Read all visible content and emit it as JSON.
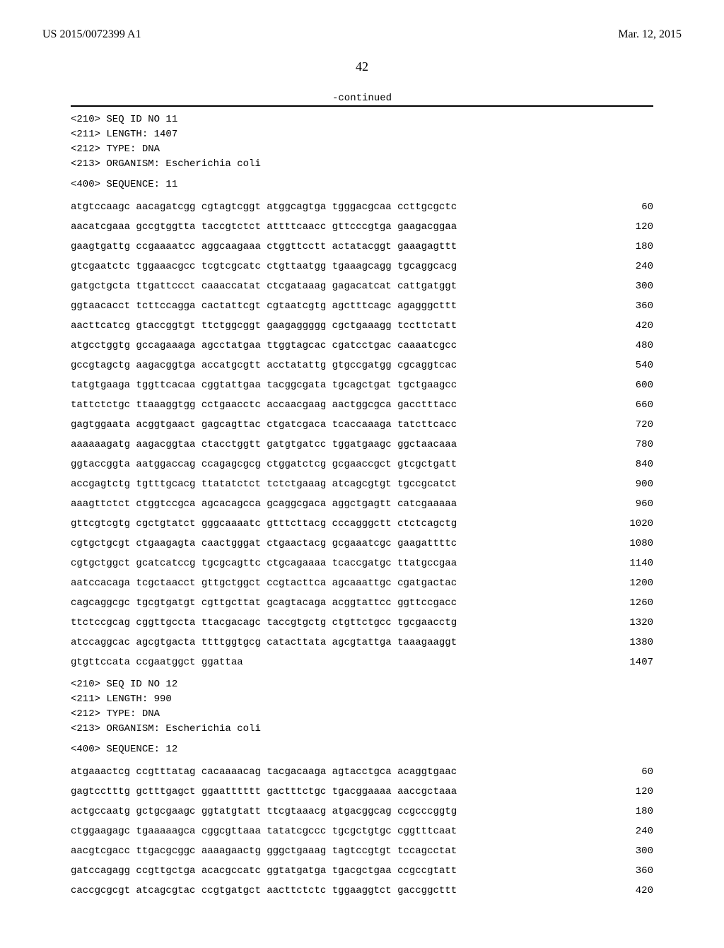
{
  "header": {
    "pub_number": "US 2015/0072399 A1",
    "pub_date": "Mar. 12, 2015"
  },
  "page_number": "42",
  "continued_label": "-continued",
  "seq11": {
    "meta": [
      "<210> SEQ ID NO 11",
      "<211> LENGTH: 1407",
      "<212> TYPE: DNA",
      "<213> ORGANISM: Escherichia coli"
    ],
    "title": "<400> SEQUENCE: 11",
    "rows": [
      {
        "g": "atgtccaagc aacagatcgg cgtagtcggt atggcagtga tgggacgcaa ccttgcgctc",
        "p": "60"
      },
      {
        "g": "aacatcgaaa gccgtggtta taccgtctct attttcaacc gttcccgtga gaagacggaa",
        "p": "120"
      },
      {
        "g": "gaagtgattg ccgaaaatcc aggcaagaaa ctggttcctt actatacggt gaaagagttt",
        "p": "180"
      },
      {
        "g": "gtcgaatctc tggaaacgcc tcgtcgcatc ctgttaatgg tgaaagcagg tgcaggcacg",
        "p": "240"
      },
      {
        "g": "gatgctgcta ttgattccct caaaccatat ctcgataaag gagacatcat cattgatggt",
        "p": "300"
      },
      {
        "g": "ggtaacacct tcttccagga cactattcgt cgtaatcgtg agctttcagc agagggcttt",
        "p": "360"
      },
      {
        "g": "aacttcatcg gtaccggtgt ttctggcggt gaagaggggg cgctgaaagg tccttctatt",
        "p": "420"
      },
      {
        "g": "atgcctggtg gccagaaaga agcctatgaa ttggtagcac cgatcctgac caaaatcgcc",
        "p": "480"
      },
      {
        "g": "gccgtagctg aagacggtga accatgcgtt acctatattg gtgccgatgg cgcaggtcac",
        "p": "540"
      },
      {
        "g": "tatgtgaaga tggttcacaa cggtattgaa tacggcgata tgcagctgat tgctgaagcc",
        "p": "600"
      },
      {
        "g": "tattctctgc ttaaaggtgg cctgaacctc accaacgaag aactggcgca gacctttacc",
        "p": "660"
      },
      {
        "g": "gagtggaata acggtgaact gagcagttac ctgatcgaca tcaccaaaga tatcttcacc",
        "p": "720"
      },
      {
        "g": "aaaaaagatg aagacggtaa ctacctggtt gatgtgatcc tggatgaagc ggctaacaaa",
        "p": "780"
      },
      {
        "g": "ggtaccggta aatggaccag ccagagcgcg ctggatctcg gcgaaccgct gtcgctgatt",
        "p": "840"
      },
      {
        "g": "accgagtctg tgtttgcacg ttatatctct tctctgaaag atcagcgtgt tgccgcatct",
        "p": "900"
      },
      {
        "g": "aaagttctct ctggtccgca agcacagcca gcaggcgaca aggctgagtt catcgaaaaa",
        "p": "960"
      },
      {
        "g": "gttcgtcgtg cgctgtatct gggcaaaatc gtttcttacg cccagggctt ctctcagctg",
        "p": "1020"
      },
      {
        "g": "cgtgctgcgt ctgaagagta caactgggat ctgaactacg gcgaaatcgc gaagattttc",
        "p": "1080"
      },
      {
        "g": "cgtgctggct gcatcatccg tgcgcagttc ctgcagaaaa tcaccgatgc ttatgccgaa",
        "p": "1140"
      },
      {
        "g": "aatccacaga tcgctaacct gttgctggct ccgtacttca agcaaattgc cgatgactac",
        "p": "1200"
      },
      {
        "g": "cagcaggcgc tgcgtgatgt cgttgcttat gcagtacaga acggtattcc ggttccgacc",
        "p": "1260"
      },
      {
        "g": "ttctccgcag cggttgccta ttacgacagc taccgtgctg ctgttctgcc tgcgaacctg",
        "p": "1320"
      },
      {
        "g": "atccaggcac agcgtgacta ttttggtgcg catacttata agcgtattga taaagaaggt",
        "p": "1380"
      },
      {
        "g": "gtgttccata ccgaatggct ggattaa",
        "p": "1407"
      }
    ]
  },
  "seq12": {
    "meta": [
      "<210> SEQ ID NO 12",
      "<211> LENGTH: 990",
      "<212> TYPE: DNA",
      "<213> ORGANISM: Escherichia coli"
    ],
    "title": "<400> SEQUENCE: 12",
    "rows": [
      {
        "g": "atgaaactcg ccgtttatag cacaaaacag tacgacaaga agtacctgca acaggtgaac",
        "p": "60"
      },
      {
        "g": "gagtcctttg gctttgagct ggaatttttt gactttctgc tgacggaaaa aaccgctaaa",
        "p": "120"
      },
      {
        "g": "actgccaatg gctgcgaagc ggtatgtatt ttcgtaaacg atgacggcag ccgcccggtg",
        "p": "180"
      },
      {
        "g": "ctggaagagc tgaaaaagca cggcgttaaa tatatcgccc tgcgctgtgc cggtttcaat",
        "p": "240"
      },
      {
        "g": "aacgtcgacc ttgacgcggc aaaagaactg gggctgaaag tagtccgtgt tccagcctat",
        "p": "300"
      },
      {
        "g": "gatccagagg ccgttgctga acacgccatc ggtatgatga tgacgctgaa ccgccgtatt",
        "p": "360"
      },
      {
        "g": "caccgcgcgt atcagcgtac ccgtgatgct aacttctctc tggaaggtct gaccggcttt",
        "p": "420"
      }
    ]
  }
}
